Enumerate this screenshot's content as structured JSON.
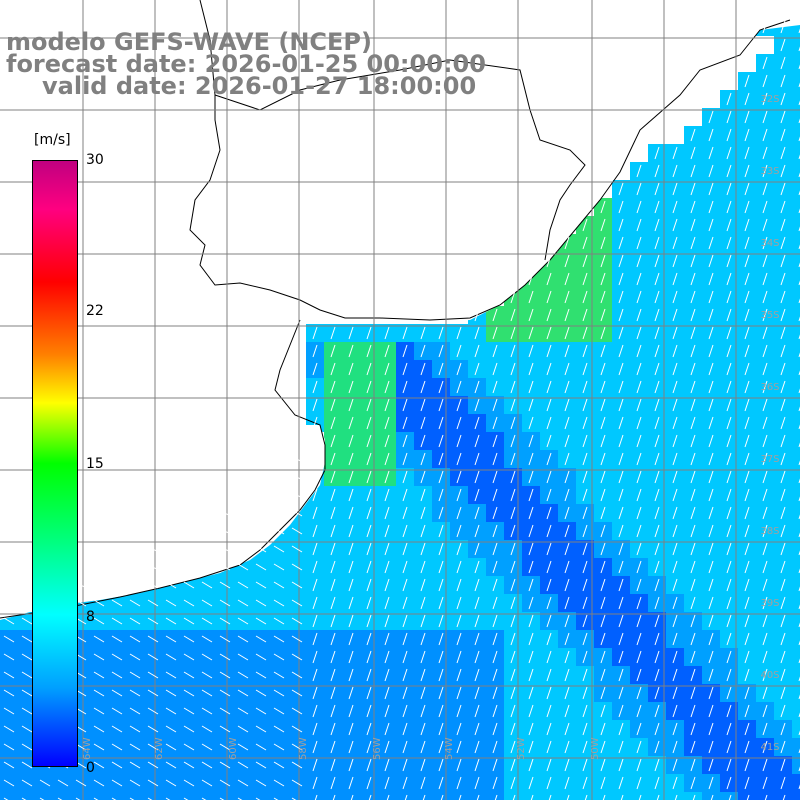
{
  "title": {
    "line1": "modelo GEFS-WAVE (NCEP)",
    "line2": "forecast date: 2026-01-25 00:00:00",
    "line3": "valid date: 2026-01-27 18:00:00"
  },
  "colorbar": {
    "unit": "[m/s]",
    "ticks": [
      "30",
      "22",
      "15",
      "8",
      "0"
    ],
    "min": 0,
    "max": 30,
    "colors": [
      "#0000ff",
      "#00a0ff",
      "#00ffff",
      "#00ff80",
      "#00ff00",
      "#ffff00",
      "#ff8000",
      "#ff0000",
      "#c00080"
    ]
  },
  "map": {
    "land_color": "#ffffff",
    "coast_color": "#000000",
    "grid_color": "#808080",
    "arrow_color": "#ffffff",
    "grid": true,
    "latitude_labels": [
      "32S",
      "33S",
      "34S",
      "35S",
      "36S",
      "37S",
      "38S",
      "39S",
      "40S",
      "41S"
    ],
    "longitude_labels": [
      "64W",
      "62W",
      "60W",
      "58W",
      "56W",
      "54W",
      "52W",
      "50W"
    ]
  }
}
